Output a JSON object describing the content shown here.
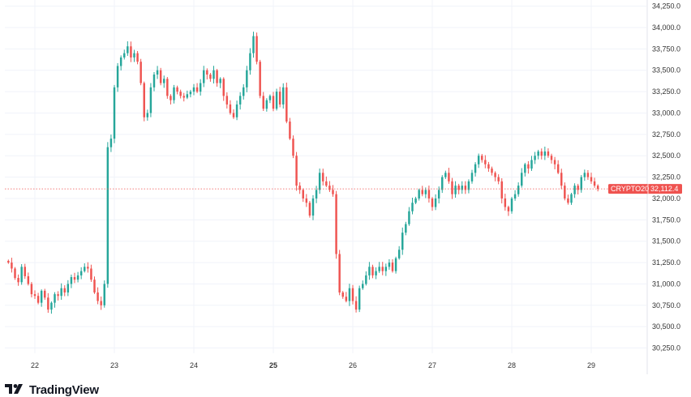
{
  "brand": {
    "name": "TradingView"
  },
  "chart_data": {
    "type": "candlestick",
    "symbol_badge": "CRYPTO20",
    "last_price_label": "32,112.4",
    "last_price": 32112.4,
    "ylim": [
      30150,
      34250
    ],
    "y_ticks": [
      30250,
      30500,
      30750,
      31000,
      31250,
      31500,
      31750,
      32000,
      32250,
      32500,
      32750,
      33000,
      33250,
      33500,
      33750,
      34000,
      34250
    ],
    "y_tick_labels": [
      "30,250.0",
      "30,500.0",
      "30,750.0",
      "31,000.0",
      "31,250.0",
      "31,500.0",
      "31,750.0",
      "32,000.0",
      "32,250.0",
      "32,500.0",
      "32,750.0",
      "33,000.0",
      "33,250.0",
      "33,500.0",
      "33,750.0",
      "34,000.0",
      "34,250.0"
    ],
    "x_ticks": [
      {
        "label": "22",
        "bold": false
      },
      {
        "label": "23",
        "bold": false
      },
      {
        "label": "24",
        "bold": false
      },
      {
        "label": "25",
        "bold": true
      },
      {
        "label": "26",
        "bold": false
      },
      {
        "label": "27",
        "bold": false
      },
      {
        "label": "28",
        "bold": false
      },
      {
        "label": "29",
        "bold": false
      }
    ],
    "up_color": "#26a69a",
    "down_color": "#ef5350",
    "grid": true,
    "candles_per_day": 24,
    "candle_start_offset": -8,
    "closes": [
      31250,
      31180,
      31070,
      31020,
      31200,
      31090,
      31000,
      30880,
      30860,
      30780,
      30920,
      30840,
      30700,
      30780,
      30880,
      30860,
      30950,
      30900,
      31000,
      31080,
      31050,
      31100,
      31150,
      31200,
      31180,
      31050,
      30900,
      30800,
      30750,
      31000,
      32600,
      32700,
      33300,
      33550,
      33650,
      33700,
      33780,
      33650,
      33700,
      33600,
      33350,
      32950,
      33000,
      33300,
      33450,
      33500,
      33350,
      33400,
      33200,
      33150,
      33300,
      33250,
      33200,
      33180,
      33220,
      33250,
      33300,
      33250,
      33350,
      33500,
      33450,
      33400,
      33500,
      33350,
      33400,
      33200,
      33100,
      33000,
      32950,
      33100,
      33200,
      33300,
      33500,
      33700,
      33900,
      33600,
      33200,
      33050,
      33150,
      33200,
      33050,
      33250,
      33100,
      33300,
      32900,
      32700,
      32500,
      32150,
      32100,
      32000,
      31950,
      31800,
      32000,
      32100,
      32300,
      32200,
      32150,
      32100,
      32050,
      31350,
      30900,
      30850,
      30800,
      30950,
      30800,
      30700,
      30950,
      31000,
      31100,
      31200,
      31100,
      31150,
      31200,
      31150,
      31200,
      31250,
      31150,
      31300,
      31400,
      31600,
      31700,
      31850,
      31950,
      32000,
      32100,
      32050,
      32100,
      32000,
      31900,
      32000,
      32100,
      32250,
      32300,
      32200,
      32050,
      32150,
      32100,
      32150,
      32100,
      32200,
      32300,
      32400,
      32500,
      32450,
      32400,
      32350,
      32300,
      32250,
      32200,
      32000,
      31900,
      31850,
      32000,
      32050,
      32150,
      32300,
      32400,
      32350,
      32450,
      32500,
      32550,
      32500,
      32550,
      32500,
      32450,
      32400,
      32300,
      32150,
      32000,
      31950,
      32050,
      32150,
      32100,
      32250,
      32300,
      32250,
      32200,
      32150,
      32112.4
    ]
  }
}
